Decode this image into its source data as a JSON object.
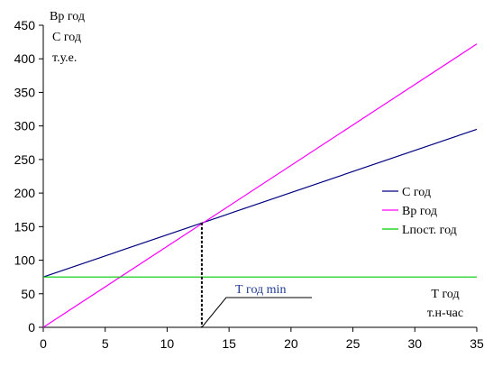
{
  "chart_data": {
    "type": "line",
    "ylabel_lines": [
      "Вр год",
      "С год",
      "т.у.е."
    ],
    "xlabel_lines": [
      "Т год",
      "т.н-час"
    ],
    "xlim": [
      0,
      35
    ],
    "ylim": [
      0,
      450
    ],
    "x_ticks": [
      0,
      5,
      10,
      15,
      20,
      25,
      30,
      35
    ],
    "y_ticks": [
      0,
      50,
      100,
      150,
      200,
      250,
      300,
      350,
      400,
      450
    ],
    "grid": false,
    "legend_position": "right",
    "series": [
      {
        "name": "С год",
        "color": "#000080",
        "x": [
          0,
          35
        ],
        "y": [
          75,
          295
        ]
      },
      {
        "name": "Вр год",
        "color": "#ff00ff",
        "x": [
          0,
          35
        ],
        "y": [
          0,
          422
        ]
      },
      {
        "name": "Lпост. год",
        "color": "#00cc00",
        "x": [
          0,
          35
        ],
        "y": [
          75,
          75
        ]
      }
    ],
    "breakeven": {
      "x": 12.8,
      "y": 156
    },
    "annotation": {
      "text": "Т год min",
      "color": "#1f3a93"
    }
  }
}
